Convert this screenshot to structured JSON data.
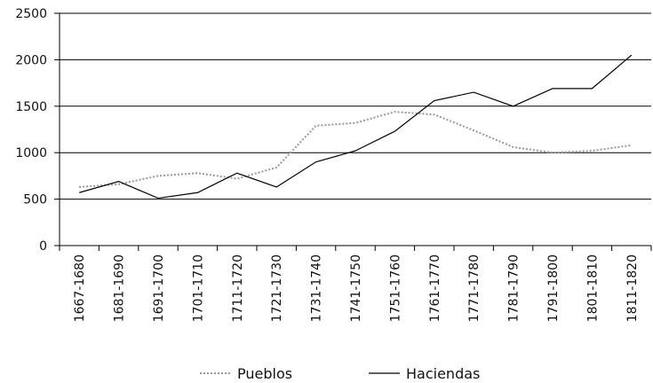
{
  "chart_data": {
    "type": "line",
    "categories": [
      "1667-1680",
      "1681-1690",
      "1691-1700",
      "1701-1710",
      "1711-1720",
      "1721-1730",
      "1731-1740",
      "1741-1750",
      "1751-1760",
      "1761-1770",
      "1771-1780",
      "1781-1790",
      "1791-1800",
      "1801-1810",
      "1811-1820"
    ],
    "series": [
      {
        "name": "Pueblos",
        "color": "#999999",
        "values": [
          630,
          660,
          750,
          780,
          720,
          840,
          1290,
          1320,
          1440,
          1410,
          1240,
          1060,
          1000,
          1020,
          1080
        ]
      },
      {
        "name": "Haciendas",
        "color": "#000000",
        "values": [
          570,
          690,
          510,
          570,
          780,
          630,
          900,
          1020,
          1230,
          1560,
          1650,
          1500,
          1690,
          1690,
          2050
        ]
      }
    ],
    "ylim": [
      0,
      2500
    ],
    "yticks": [
      0,
      500,
      1000,
      1500,
      2000,
      2500
    ],
    "grid": true
  }
}
